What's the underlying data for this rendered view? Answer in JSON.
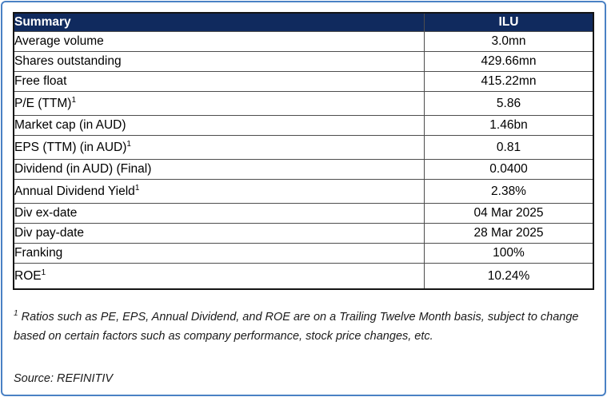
{
  "colors": {
    "frame_border": "#4a81c4",
    "header_bg": "#102a5e",
    "header_text": "#ffffff",
    "table_outer_border": "#141414",
    "table_grid": "#4d4d4d"
  },
  "table": {
    "header": {
      "label": "Summary",
      "ticker": "ILU"
    },
    "rows": [
      {
        "label": "Average volume",
        "sup": "",
        "value": "3.0mn"
      },
      {
        "label": "Shares outstanding",
        "sup": "",
        "value": "429.66mn"
      },
      {
        "label": "Free float",
        "sup": "",
        "value": "415.22mn"
      },
      {
        "label": "P/E (TTM)",
        "sup": "1",
        "value": "5.86"
      },
      {
        "label": "Market cap (in AUD)",
        "sup": "",
        "value": "1.46bn"
      },
      {
        "label": "EPS (TTM) (in AUD)",
        "sup": "1",
        "value": "0.81"
      },
      {
        "label": "Dividend (in AUD) (Final)",
        "sup": "",
        "value": "0.0400"
      },
      {
        "label": "Annual Dividend Yield",
        "sup": "1",
        "value": "2.38%"
      },
      {
        "label": "Div ex-date",
        "sup": "",
        "value": "04 Mar 2025"
      },
      {
        "label": "Div pay-date",
        "sup": "",
        "value": "28 Mar 2025"
      },
      {
        "label": "Franking",
        "sup": "",
        "value": "100%"
      },
      {
        "label": "ROE",
        "sup": "1",
        "value": "10.24%"
      }
    ]
  },
  "footnote": {
    "sup": "1",
    "text": "Ratios such as PE, EPS, Annual Dividend, and ROE are on a Trailing Twelve Month basis, subject to change based on certain factors such as company performance, stock price changes, etc."
  },
  "source": {
    "text": "Source: REFINITIV"
  }
}
